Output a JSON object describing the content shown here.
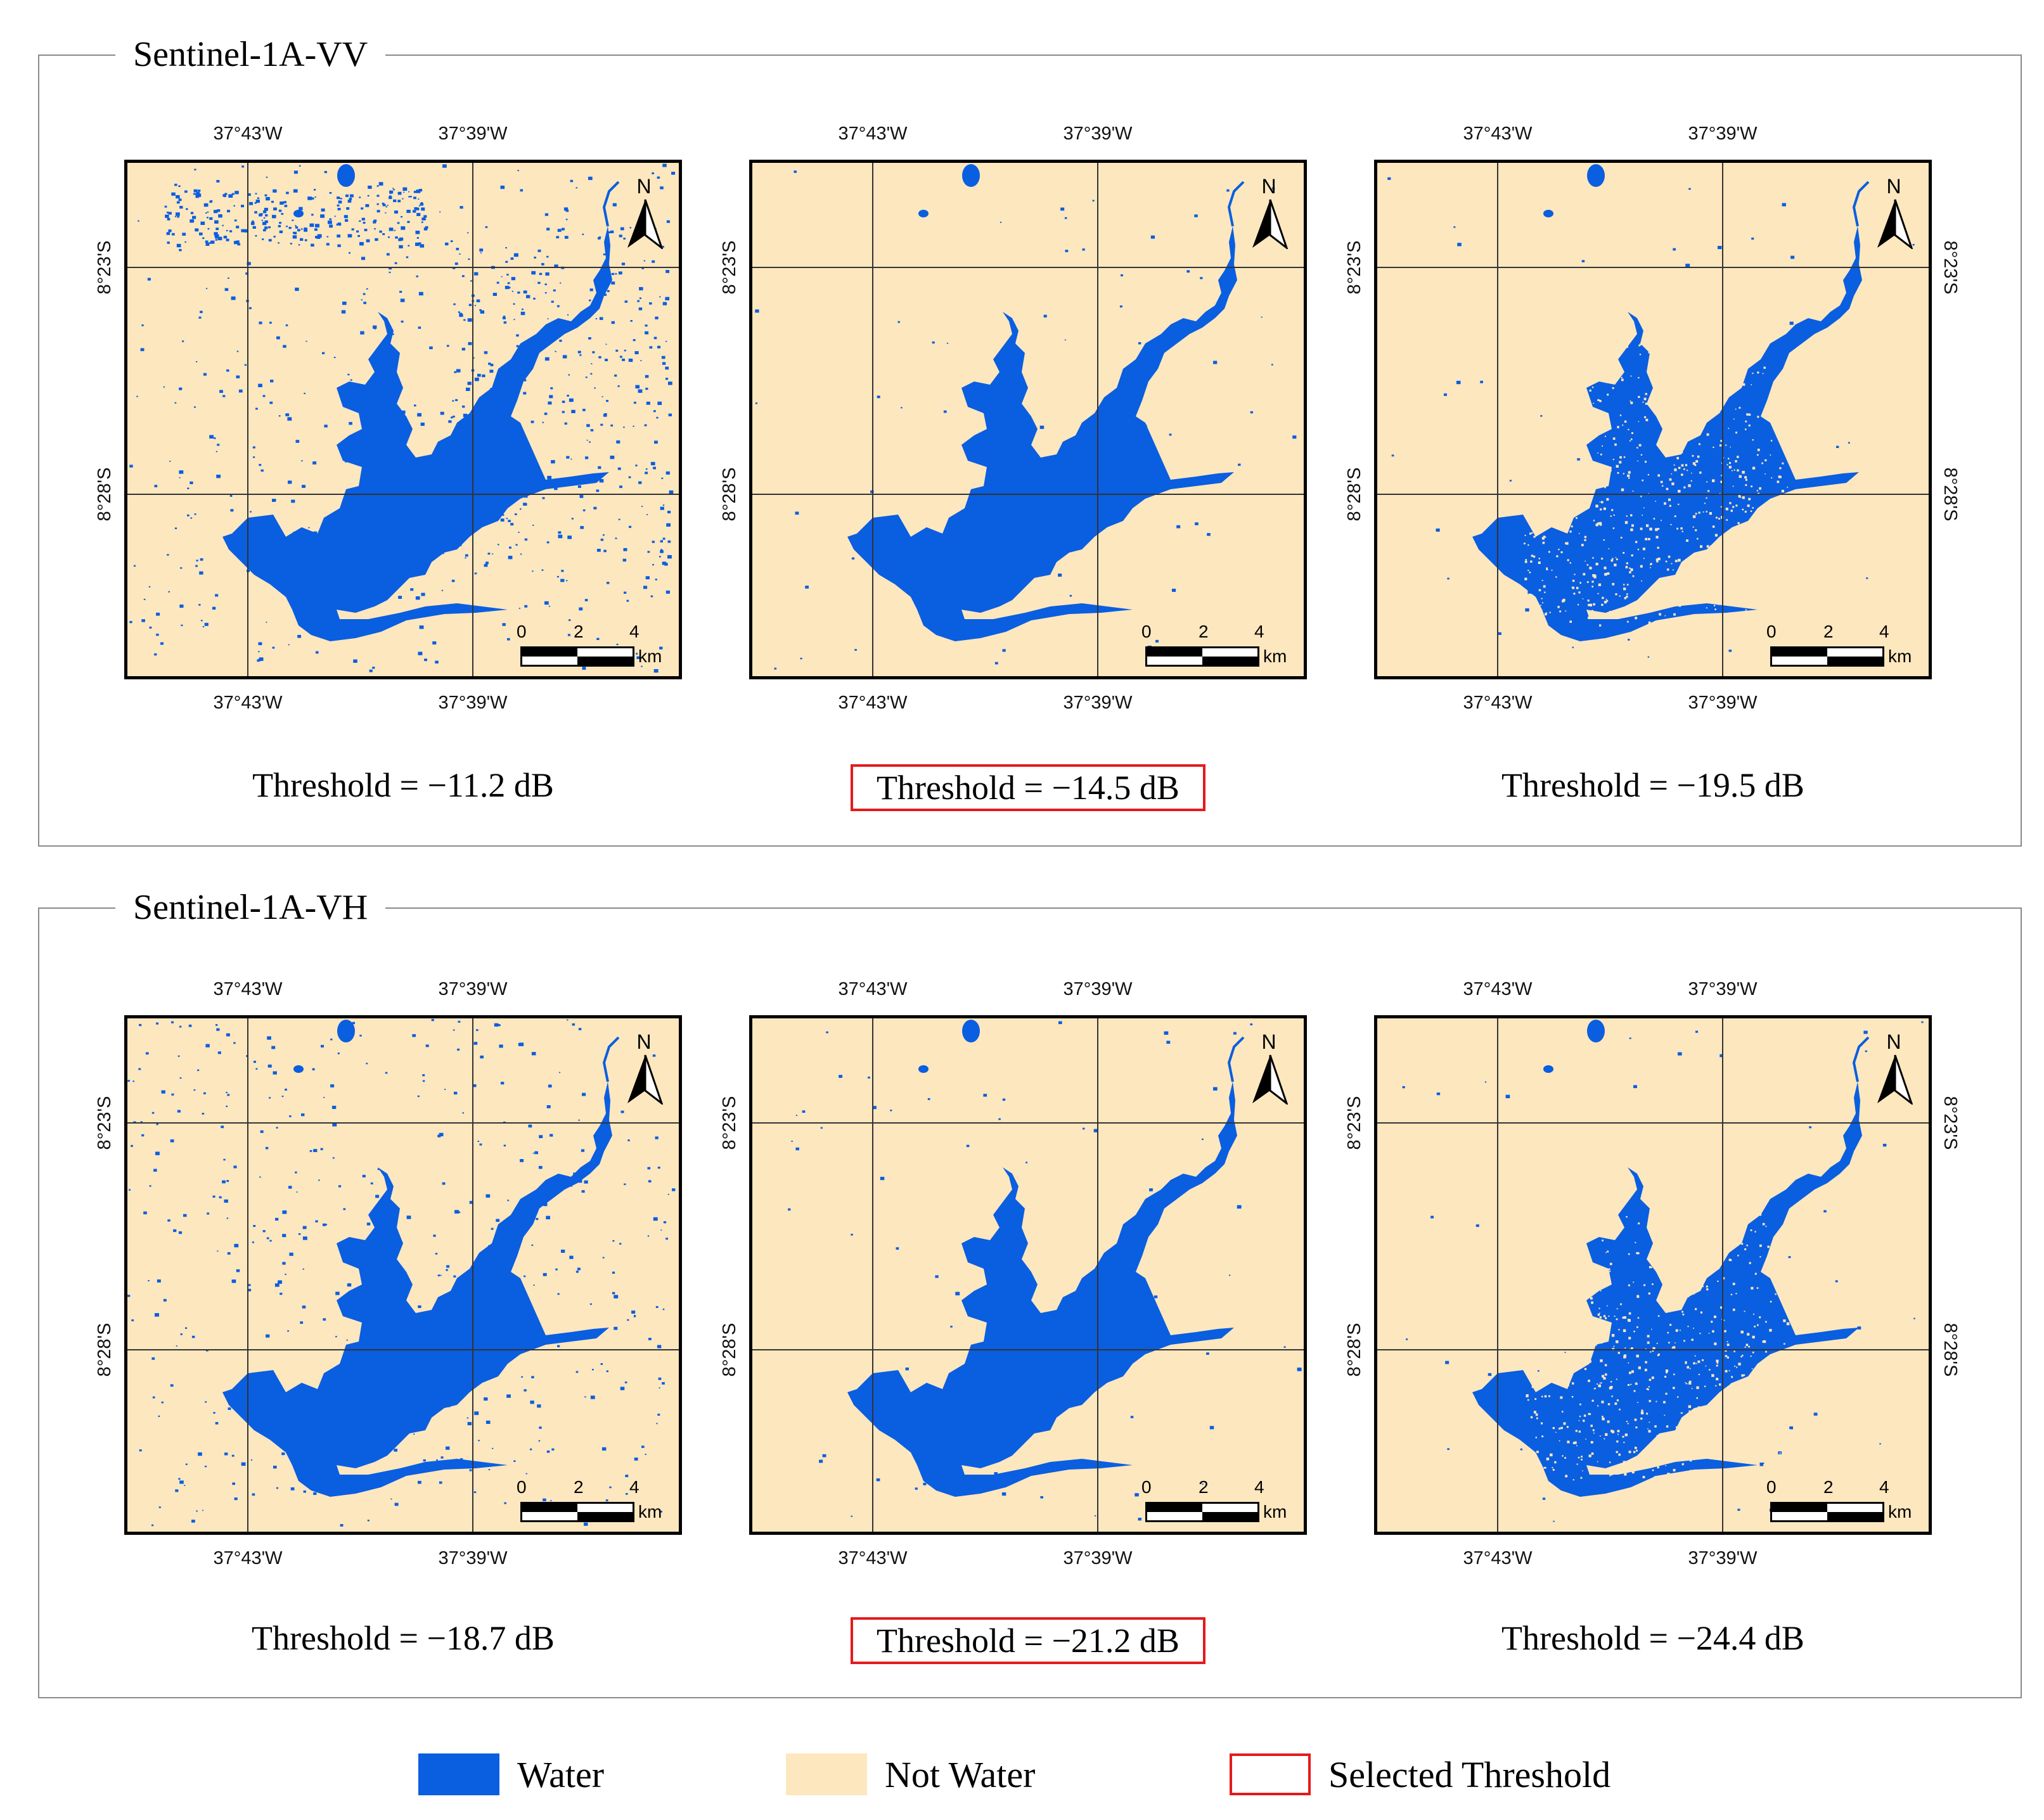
{
  "figure": {
    "groups": [
      {
        "title": "Sentinel-1A-VV",
        "panels": [
          {
            "threshold_label": "Threshold = −11.2 dB",
            "threshold_db": -11.2,
            "selected": false,
            "noise": "high"
          },
          {
            "threshold_label": "Threshold = −14.5 dB",
            "threshold_db": -14.5,
            "selected": true,
            "noise": "low"
          },
          {
            "threshold_label": "Threshold = −19.5 dB",
            "threshold_db": -19.5,
            "selected": false,
            "noise": "speckled"
          }
        ]
      },
      {
        "title": "Sentinel-1A-VH",
        "panels": [
          {
            "threshold_label": "Threshold = −18.7 dB",
            "threshold_db": -18.7,
            "selected": false,
            "noise": "medium"
          },
          {
            "threshold_label": "Threshold = −21.2 dB",
            "threshold_db": -21.2,
            "selected": true,
            "noise": "low"
          },
          {
            "threshold_label": "Threshold = −24.4 dB",
            "threshold_db": -24.4,
            "selected": false,
            "noise": "speckled"
          }
        ]
      }
    ],
    "axes": {
      "lon_labels": [
        "37°43'W",
        "37°39'W"
      ],
      "lat_labels": [
        "8°23'S",
        "8°28'S"
      ]
    },
    "north_label": "N",
    "scale": {
      "ticks": [
        "0",
        "2",
        "4"
      ],
      "unit": "km"
    },
    "colors": {
      "water": "#0a5ee0",
      "not_water": "#fde7bf",
      "selected": "#e41a1c",
      "frame": "#8a8a8a"
    },
    "legend": [
      {
        "label": "Water",
        "kind": "water"
      },
      {
        "label": "Not Water",
        "kind": "not_water"
      },
      {
        "label": "Selected Threshold",
        "kind": "selected"
      }
    ]
  }
}
